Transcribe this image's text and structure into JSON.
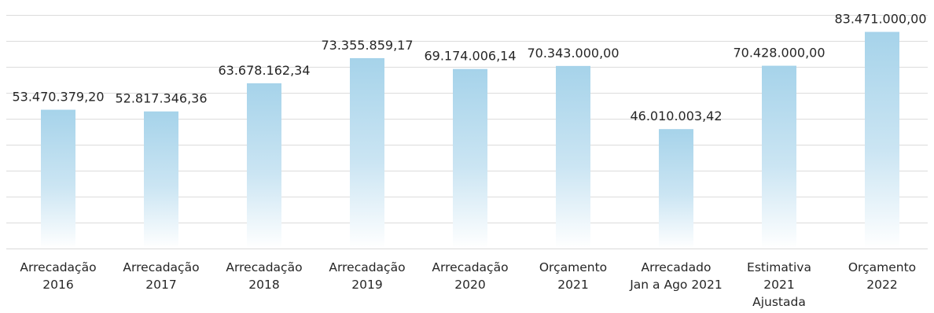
{
  "chart_data": {
    "type": "bar",
    "categories": [
      [
        "Arrecadação",
        "2016"
      ],
      [
        "Arrecadação",
        "2017"
      ],
      [
        "Arrecadação",
        "2018"
      ],
      [
        "Arrecadação",
        "2019"
      ],
      [
        "Arrecadação",
        "2020"
      ],
      [
        "Orçamento",
        "2021"
      ],
      [
        "Arrecadado",
        "Jan a Ago 2021"
      ],
      [
        "Estimativa",
        "2021",
        "Ajustada"
      ],
      [
        "Orçamento",
        "2022"
      ]
    ],
    "values": [
      53470379.2,
      52817346.36,
      63678162.34,
      73355859.17,
      69174006.14,
      70343000.0,
      46010003.42,
      70428000.0,
      83471000.0
    ],
    "data_labels": [
      "53.470.379,20",
      "52.817.346,36",
      "63.678.162,34",
      "73.355.859,17",
      "69.174.006,14",
      "70.343.000,00",
      "46.010.003,42",
      "70.428.000,00",
      "83.471.000,00"
    ],
    "title": "",
    "xlabel": "",
    "ylabel": "",
    "ylim": [
      0,
      90000000
    ],
    "grid": true,
    "legend": "none",
    "bar_color_top": "#a6d3ea",
    "bar_color_bottom": "#ffffff"
  }
}
